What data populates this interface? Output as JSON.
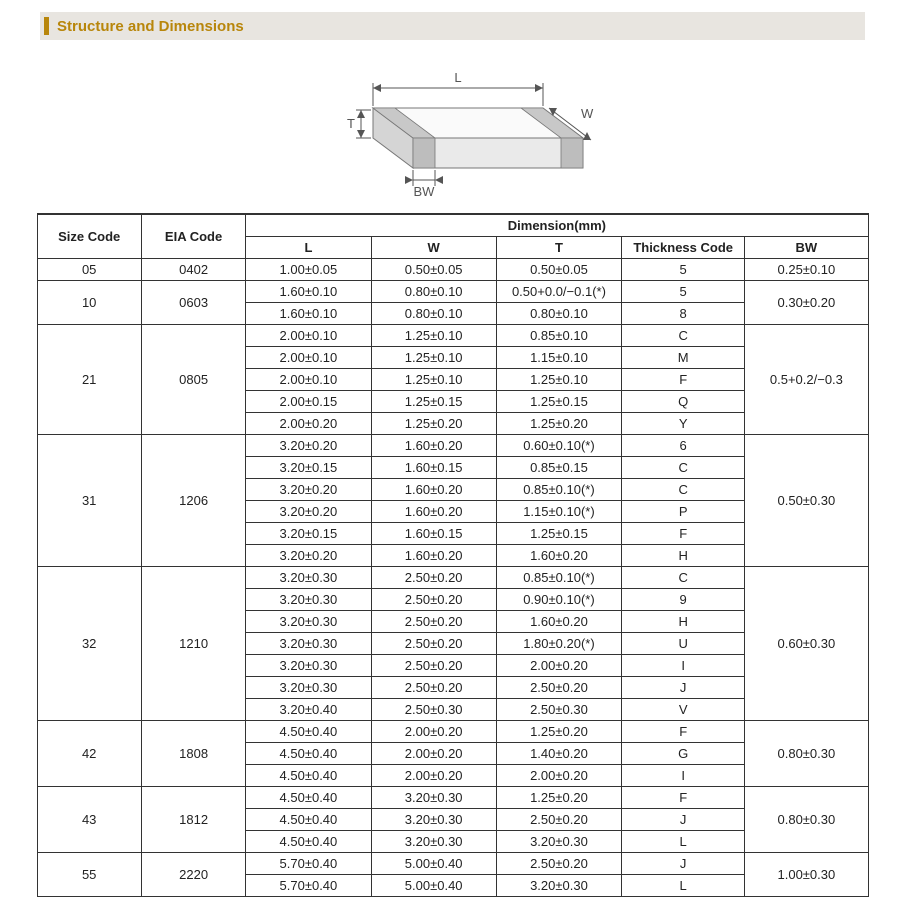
{
  "section_title": "Structure and Dimensions",
  "diagram": {
    "labels": {
      "L": "L",
      "W": "W",
      "T": "T",
      "BW": "BW"
    },
    "stroke": "#777777",
    "fill_face": "#fafafa",
    "fill_side": "#eaeaea",
    "fill_end": "#d5d5d5",
    "terminal_fill": "#c8c8c8"
  },
  "table": {
    "header_top": "Dimension(mm)",
    "columns": [
      "Size Code",
      "EIA Code",
      "L",
      "W",
      "T",
      "Thickness  Code",
      "BW"
    ],
    "groups": [
      {
        "size": "05",
        "eia": "0402",
        "bw": "0.25±0.10",
        "rows": [
          {
            "L": "1.00±0.05",
            "W": "0.50±0.05",
            "T": "0.50±0.05",
            "code": "5"
          }
        ]
      },
      {
        "size": "10",
        "eia": "0603",
        "bw": "0.30±0.20",
        "rows": [
          {
            "L": "1.60±0.10",
            "W": "0.80±0.10",
            "T": "0.50+0.0/−0.1(*)",
            "code": "5"
          },
          {
            "L": "1.60±0.10",
            "W": "0.80±0.10",
            "T": "0.80±0.10",
            "code": "8"
          }
        ]
      },
      {
        "size": "21",
        "eia": "0805",
        "bw": "0.5+0.2/−0.3",
        "rows": [
          {
            "L": "2.00±0.10",
            "W": "1.25±0.10",
            "T": "0.85±0.10",
            "code": "C"
          },
          {
            "L": "2.00±0.10",
            "W": "1.25±0.10",
            "T": "1.15±0.10",
            "code": "M"
          },
          {
            "L": "2.00±0.10",
            "W": "1.25±0.10",
            "T": "1.25±0.10",
            "code": "F"
          },
          {
            "L": "2.00±0.15",
            "W": "1.25±0.15",
            "T": "1.25±0.15",
            "code": "Q"
          },
          {
            "L": "2.00±0.20",
            "W": "1.25±0.20",
            "T": "1.25±0.20",
            "code": "Y"
          }
        ]
      },
      {
        "size": "31",
        "eia": "1206",
        "bw": "0.50±0.30",
        "rows": [
          {
            "L": "3.20±0.20",
            "W": "1.60±0.20",
            "T": "0.60±0.10(*)",
            "code": "6"
          },
          {
            "L": "3.20±0.15",
            "W": "1.60±0.15",
            "T": "0.85±0.15",
            "code": "C"
          },
          {
            "L": "3.20±0.20",
            "W": "1.60±0.20",
            "T": "0.85±0.10(*)",
            "code": "C"
          },
          {
            "L": "3.20±0.20",
            "W": "1.60±0.20",
            "T": "1.15±0.10(*)",
            "code": "P"
          },
          {
            "L": "3.20±0.15",
            "W": "1.60±0.15",
            "T": "1.25±0.15",
            "code": "F"
          },
          {
            "L": "3.20±0.20",
            "W": "1.60±0.20",
            "T": "1.60±0.20",
            "code": "H"
          }
        ]
      },
      {
        "size": "32",
        "eia": "1210",
        "bw": "0.60±0.30",
        "rows": [
          {
            "L": "3.20±0.30",
            "W": "2.50±0.20",
            "T": "0.85±0.10(*)",
            "code": "C"
          },
          {
            "L": "3.20±0.30",
            "W": "2.50±0.20",
            "T": "0.90±0.10(*)",
            "code": "9"
          },
          {
            "L": "3.20±0.30",
            "W": "2.50±0.20",
            "T": "1.60±0.20",
            "code": "H"
          },
          {
            "L": "3.20±0.30",
            "W": "2.50±0.20",
            "T": "1.80±0.20(*)",
            "code": "U"
          },
          {
            "L": "3.20±0.30",
            "W": "2.50±0.20",
            "T": "2.00±0.20",
            "code": "I"
          },
          {
            "L": "3.20±0.30",
            "W": "2.50±0.20",
            "T": "2.50±0.20",
            "code": "J"
          },
          {
            "L": "3.20±0.40",
            "W": "2.50±0.30",
            "T": "2.50±0.30",
            "code": "V"
          }
        ]
      },
      {
        "size": "42",
        "eia": "1808",
        "bw": "0.80±0.30",
        "rows": [
          {
            "L": "4.50±0.40",
            "W": "2.00±0.20",
            "T": "1.25±0.20",
            "code": "F"
          },
          {
            "L": "4.50±0.40",
            "W": "2.00±0.20",
            "T": "1.40±0.20",
            "code": "G"
          },
          {
            "L": "4.50±0.40",
            "W": "2.00±0.20",
            "T": "2.00±0.20",
            "code": "I"
          }
        ]
      },
      {
        "size": "43",
        "eia": "1812",
        "bw": "0.80±0.30",
        "rows": [
          {
            "L": "4.50±0.40",
            "W": "3.20±0.30",
            "T": "1.25±0.20",
            "code": "F"
          },
          {
            "L": "4.50±0.40",
            "W": "3.20±0.30",
            "T": "2.50±0.20",
            "code": "J"
          },
          {
            "L": "4.50±0.40",
            "W": "3.20±0.30",
            "T": "3.20±0.30",
            "code": "L"
          }
        ]
      },
      {
        "size": "55",
        "eia": "2220",
        "bw": "1.00±0.30",
        "rows": [
          {
            "L": "5.70±0.40",
            "W": "5.00±0.40",
            "T": "2.50±0.20",
            "code": "J"
          },
          {
            "L": "5.70±0.40",
            "W": "5.00±0.40",
            "T": "3.20±0.30",
            "code": "L"
          }
        ]
      }
    ]
  },
  "colors": {
    "accent": "#b8860b",
    "header_bg": "#e8e5e0",
    "border": "#333333",
    "text": "#222222"
  }
}
